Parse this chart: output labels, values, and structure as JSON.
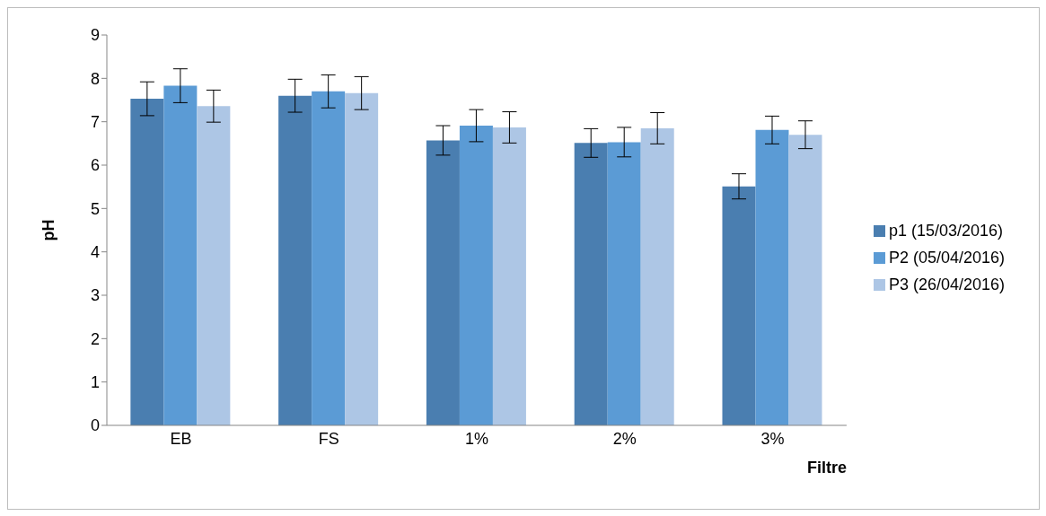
{
  "chart_data": {
    "type": "bar",
    "xlabel": "Filtre",
    "ylabel": "pH",
    "categories": [
      "EB",
      "FS",
      "1%",
      "2%",
      "3%"
    ],
    "series": [
      {
        "name": "p1 (15/03/2016)",
        "color": "#4a7eb0",
        "values": [
          7.53,
          7.6,
          6.57,
          6.51,
          5.51
        ],
        "errors": [
          0.39,
          0.38,
          0.34,
          0.33,
          0.29
        ]
      },
      {
        "name": "P2 (05/04/2016)",
        "color": "#5b9bd5",
        "values": [
          7.83,
          7.7,
          6.91,
          6.53,
          6.81
        ],
        "errors": [
          0.39,
          0.38,
          0.37,
          0.34,
          0.32
        ]
      },
      {
        "name": "P3 (26/04/2016)",
        "color": "#adc6e5",
        "values": [
          7.36,
          7.66,
          6.87,
          6.85,
          6.7
        ],
        "errors": [
          0.37,
          0.38,
          0.36,
          0.36,
          0.32
        ]
      }
    ],
    "ylim": [
      0,
      9
    ],
    "yticks": [
      0,
      1,
      2,
      3,
      4,
      5,
      6,
      7,
      8,
      9
    ],
    "grid": false,
    "legend": "right"
  }
}
